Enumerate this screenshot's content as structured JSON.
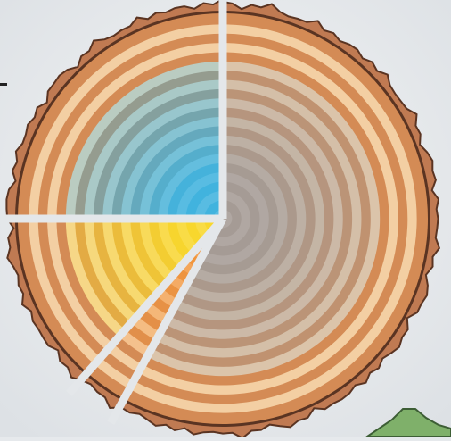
{
  "chart_data": {
    "type": "pie",
    "style": "tree-ring cross-section with wedge gaps",
    "slices": [
      {
        "value": 58.0,
        "color": "#a59b95"
      },
      {
        "value": 3.5,
        "color": "#f2953c"
      },
      {
        "value": 13.5,
        "color": "#f8d72d"
      },
      {
        "value": 25.0,
        "color": "#41b3de"
      }
    ],
    "start_angle_deg": 0,
    "direction": "clockwise",
    "legend": "none",
    "title": ""
  },
  "colors": {
    "background": "#e6e9ec",
    "bark": "#c07a52",
    "bark_dark": "#5a3422",
    "ring_light": "#f3cfa3",
    "ring_dark": "#d48b55",
    "hill_green": "#7fb06a"
  },
  "icons": {
    "dash": "dash-mark",
    "hill": "hill-shape"
  }
}
